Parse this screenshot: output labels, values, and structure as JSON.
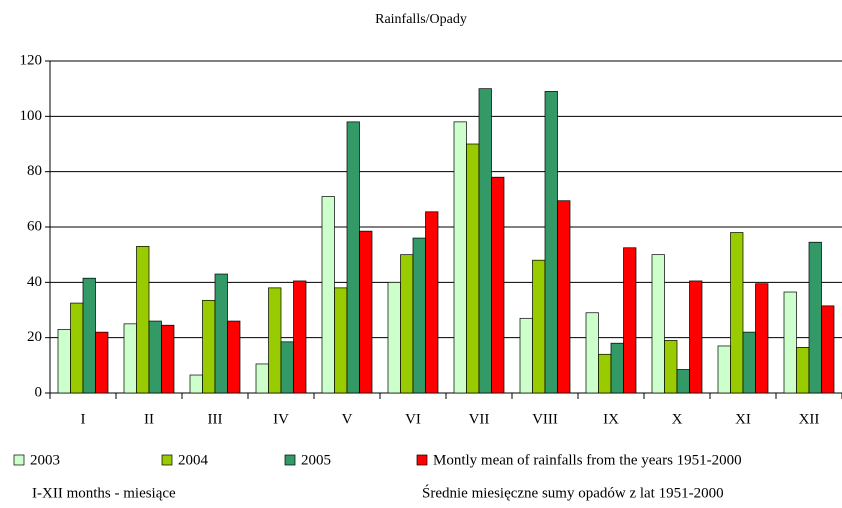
{
  "chart_data": {
    "type": "bar",
    "title": "Rainfalls/Opady",
    "categories": [
      "I",
      "II",
      "III",
      "IV",
      "V",
      "VI",
      "VII",
      "VIII",
      "IX",
      "X",
      "XI",
      "XII"
    ],
    "series": [
      {
        "name": "2003",
        "color": "#ccffcc",
        "values": [
          23,
          25,
          6.5,
          10.5,
          71,
          40,
          98,
          27,
          29,
          50,
          17,
          36.5
        ]
      },
      {
        "name": "2004",
        "color": "#99cc00",
        "values": [
          32.5,
          53,
          33.5,
          38,
          38,
          50,
          90,
          48,
          14,
          19,
          58,
          16.5
        ]
      },
      {
        "name": "2005",
        "color": "#339966",
        "values": [
          41.5,
          26,
          43,
          18.5,
          98,
          56,
          110,
          109,
          18,
          8.5,
          22,
          54.5
        ]
      },
      {
        "name": "Montly mean of rainfalls from the years 1951-2000",
        "color": "#ff0000",
        "values": [
          22,
          24.5,
          26,
          40.5,
          58.5,
          65.5,
          78,
          69.5,
          52.5,
          40.5,
          39.5,
          31.5
        ]
      }
    ],
    "ylim": [
      0,
      120
    ],
    "yticks": [
      0,
      20,
      40,
      60,
      80,
      100,
      120
    ],
    "grid": true,
    "annotations": [
      "I-XII months - miesiące",
      "Średnie miesięczne sumy opadów z lat 1951-2000"
    ]
  }
}
